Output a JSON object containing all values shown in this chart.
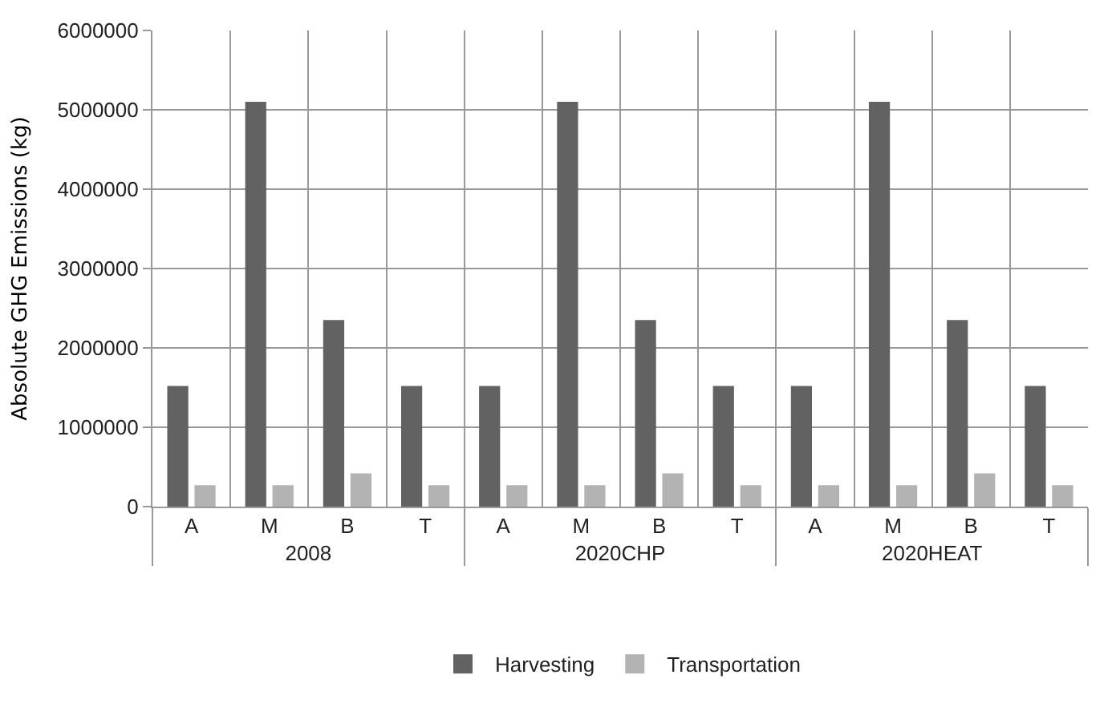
{
  "chart_data": {
    "type": "bar",
    "ylabel": "Absolute GHG Emissions (kg)",
    "categories": [
      "A",
      "M",
      "B",
      "T",
      "A",
      "M",
      "B",
      "T",
      "A",
      "M",
      "B",
      "T"
    ],
    "annotations": [
      "2008",
      "2020CHP",
      "2020HEAT"
    ],
    "series": [
      {
        "name": "Harvesting",
        "color": "#626262",
        "values": [
          1520000,
          5100000,
          2350000,
          1520000,
          1520000,
          5100000,
          2350000,
          1520000,
          1520000,
          5100000,
          2350000,
          1520000
        ]
      },
      {
        "name": "Transportation",
        "color": "#b3b3b3",
        "values": [
          270000,
          270000,
          420000,
          270000,
          270000,
          270000,
          420000,
          270000,
          270000,
          270000,
          420000,
          270000
        ]
      }
    ],
    "ylim": [
      0,
      6000000
    ],
    "yticks": [
      0,
      1000000,
      2000000,
      3000000,
      4000000,
      5000000,
      6000000
    ],
    "grid": true,
    "legend": "bottom"
  }
}
